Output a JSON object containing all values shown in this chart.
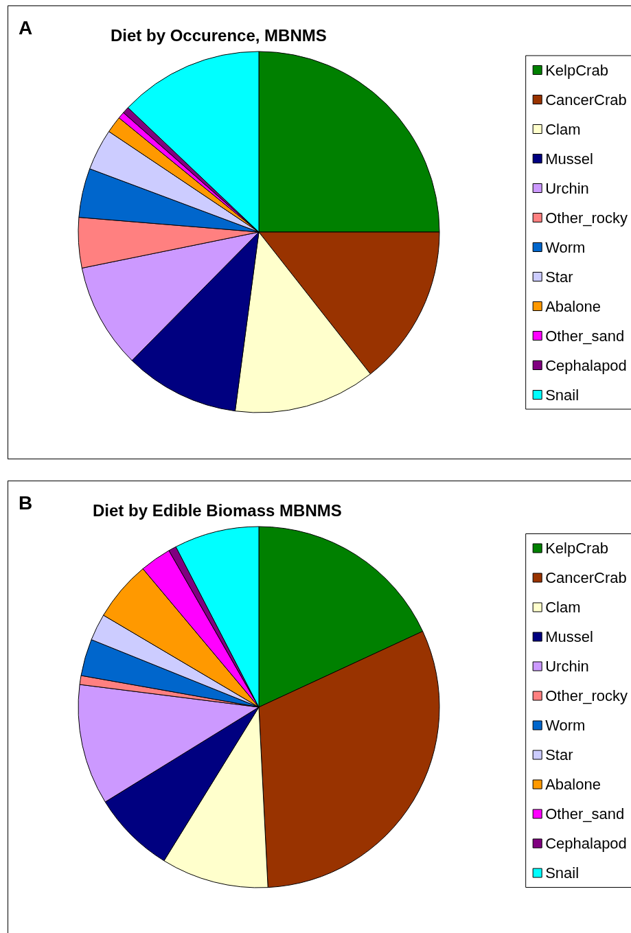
{
  "chart_data": [
    {
      "type": "pie",
      "title": "Diet by Occurence, MBNMS",
      "annotations": [
        "A"
      ],
      "legend": "right",
      "categories": [
        "KelpCrab",
        "CancerCrab",
        "Clam",
        "Mussel",
        "Urchin",
        "Other_rocky",
        "Worm",
        "Star",
        "Abalone",
        "Other_sand",
        "Cephalapod",
        "Snail"
      ],
      "values": [
        25,
        14.4,
        12.7,
        10.3,
        9.4,
        4.5,
        4.4,
        3.7,
        1.5,
        0.6,
        0.6,
        12.9
      ],
      "colors": [
        "#008000",
        "#993300",
        "#ffffcc",
        "#000080",
        "#cc99ff",
        "#ff8080",
        "#0066cc",
        "#ccccff",
        "#ff9900",
        "#ff00ff",
        "#800080",
        "#00ffff"
      ]
    },
    {
      "type": "pie",
      "title": "Diet by Edible Biomass MBNMS",
      "annotations": [
        "B"
      ],
      "legend": "right",
      "categories": [
        "KelpCrab",
        "CancerCrab",
        "Clam",
        "Mussel",
        "Urchin",
        "Other_rocky",
        "Worm",
        "Star",
        "Abalone",
        "Other_sand",
        "Cephalapod",
        "Snail"
      ],
      "values": [
        18.1,
        31.1,
        9.6,
        7.4,
        10.8,
        0.8,
        3.3,
        2.4,
        5.4,
        2.8,
        0.7,
        7.6
      ],
      "colors": [
        "#008000",
        "#993300",
        "#ffffcc",
        "#000080",
        "#cc99ff",
        "#ff8080",
        "#0066cc",
        "#ccccff",
        "#ff9900",
        "#ff00ff",
        "#800080",
        "#00ffff"
      ]
    }
  ]
}
